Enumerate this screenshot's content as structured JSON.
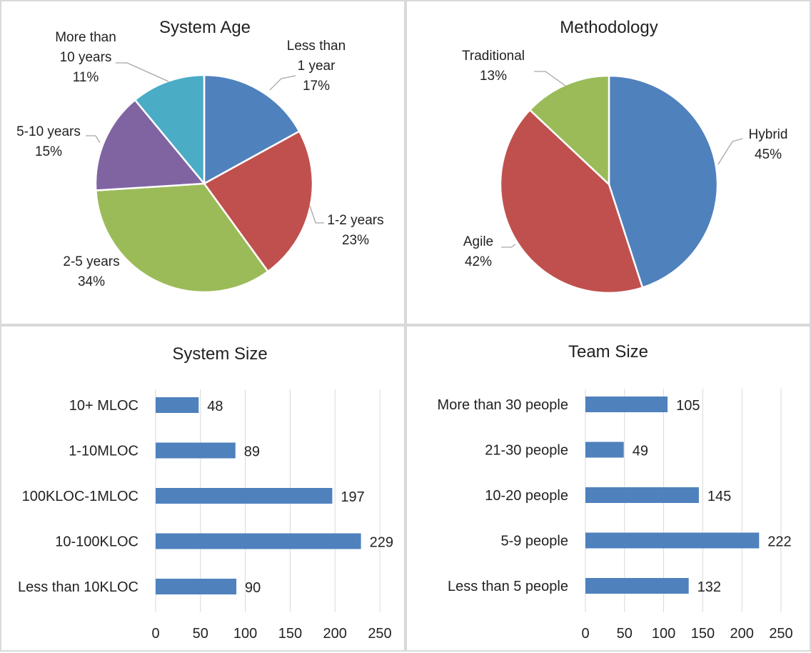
{
  "chart_data": [
    {
      "type": "pie",
      "title": "System Age",
      "slices": [
        {
          "label": "Less than 1 year",
          "percent_label": "17%",
          "value": 17,
          "color": "#4f81bd"
        },
        {
          "label": "1-2 years",
          "percent_label": "23%",
          "value": 23,
          "color": "#c0504d"
        },
        {
          "label": "2-5 years",
          "percent_label": "34%",
          "value": 34,
          "color": "#9bbb59"
        },
        {
          "label": "5-10 years",
          "percent_label": "15%",
          "value": 15,
          "color": "#8064a2"
        },
        {
          "label": "More than 10 years",
          "percent_label": "11%",
          "value": 11,
          "color": "#4bacc6"
        }
      ]
    },
    {
      "type": "pie",
      "title": "Methodology",
      "slices": [
        {
          "label": "Hybrid",
          "percent_label": "45%",
          "value": 45,
          "color": "#4f81bd"
        },
        {
          "label": "Agile",
          "percent_label": "42%",
          "value": 42,
          "color": "#c0504d"
        },
        {
          "label": "Traditional",
          "percent_label": "13%",
          "value": 13,
          "color": "#9bbb59"
        }
      ]
    },
    {
      "type": "bar",
      "orientation": "horizontal",
      "title": "System Size",
      "categories": [
        "10+ MLOC",
        "1-10MLOC",
        "100KLOC-1MLOC",
        "10-100KLOC",
        "Less than 10KLOC"
      ],
      "values": [
        48,
        89,
        197,
        229,
        90
      ],
      "xlim": [
        0,
        250
      ],
      "ticks": [
        0,
        50,
        100,
        150,
        200,
        250
      ],
      "color": "#4f81bd",
      "grid": true
    },
    {
      "type": "bar",
      "orientation": "horizontal",
      "title": "Team Size",
      "categories": [
        "More than 30 people",
        "21-30 people",
        "10-20 people",
        "5-9 people",
        "Less than 5 people"
      ],
      "values": [
        105,
        49,
        145,
        222,
        132
      ],
      "xlim": [
        0,
        250
      ],
      "ticks": [
        0,
        50,
        100,
        150,
        200,
        250
      ],
      "color": "#4f81bd",
      "grid": true
    }
  ]
}
